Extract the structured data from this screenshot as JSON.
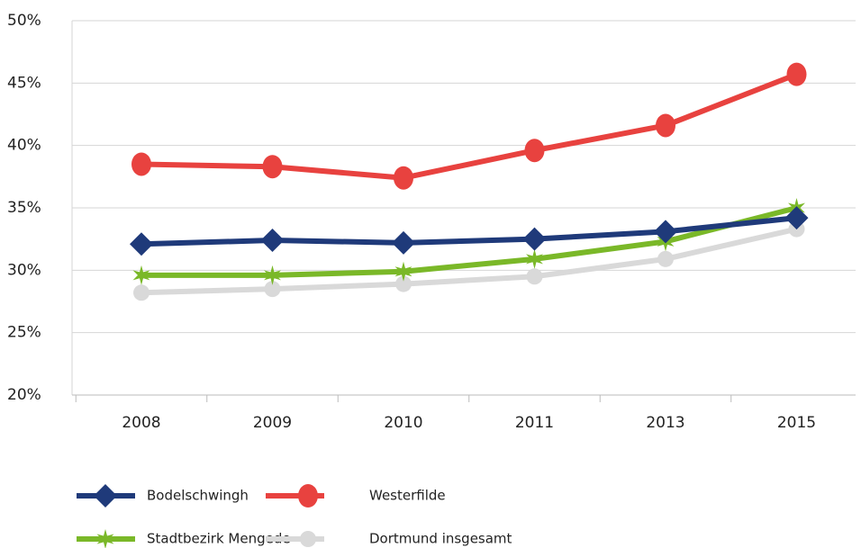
{
  "chart_data": {
    "type": "line",
    "categories": [
      "2008",
      "2009",
      "2010",
      "2011",
      "2013",
      "2015"
    ],
    "series": [
      {
        "name": "Bodelschwingh",
        "color": "#1f3a7a",
        "marker": "diamond",
        "values": [
          32.1,
          32.4,
          32.2,
          32.5,
          33.1,
          34.2
        ]
      },
      {
        "name": "Westerfilde",
        "color": "#e8423f",
        "marker": "circle",
        "values": [
          38.5,
          38.3,
          37.4,
          39.6,
          41.6,
          45.7
        ]
      },
      {
        "name": "Stadtbezirk Mengede",
        "color": "#7ab828",
        "marker": "star",
        "values": [
          29.6,
          29.6,
          29.9,
          30.9,
          32.3,
          35.0
        ]
      },
      {
        "name": "Dortmund insgesamt",
        "color": "#d9d9d9",
        "marker": "dot",
        "values": [
          28.2,
          28.5,
          28.9,
          29.5,
          30.9,
          33.3
        ]
      }
    ],
    "ylim": [
      20,
      50
    ],
    "yticks": [
      {
        "value": 20,
        "label": "20%"
      },
      {
        "value": 25,
        "label": "25%"
      },
      {
        "value": 30,
        "label": "30%"
      },
      {
        "value": 35,
        "label": "35%"
      },
      {
        "value": 40,
        "label": "40%"
      },
      {
        "value": 45,
        "label": "45%"
      },
      {
        "value": 50,
        "label": "50%"
      }
    ],
    "grid": true,
    "legend": "bottom"
  }
}
